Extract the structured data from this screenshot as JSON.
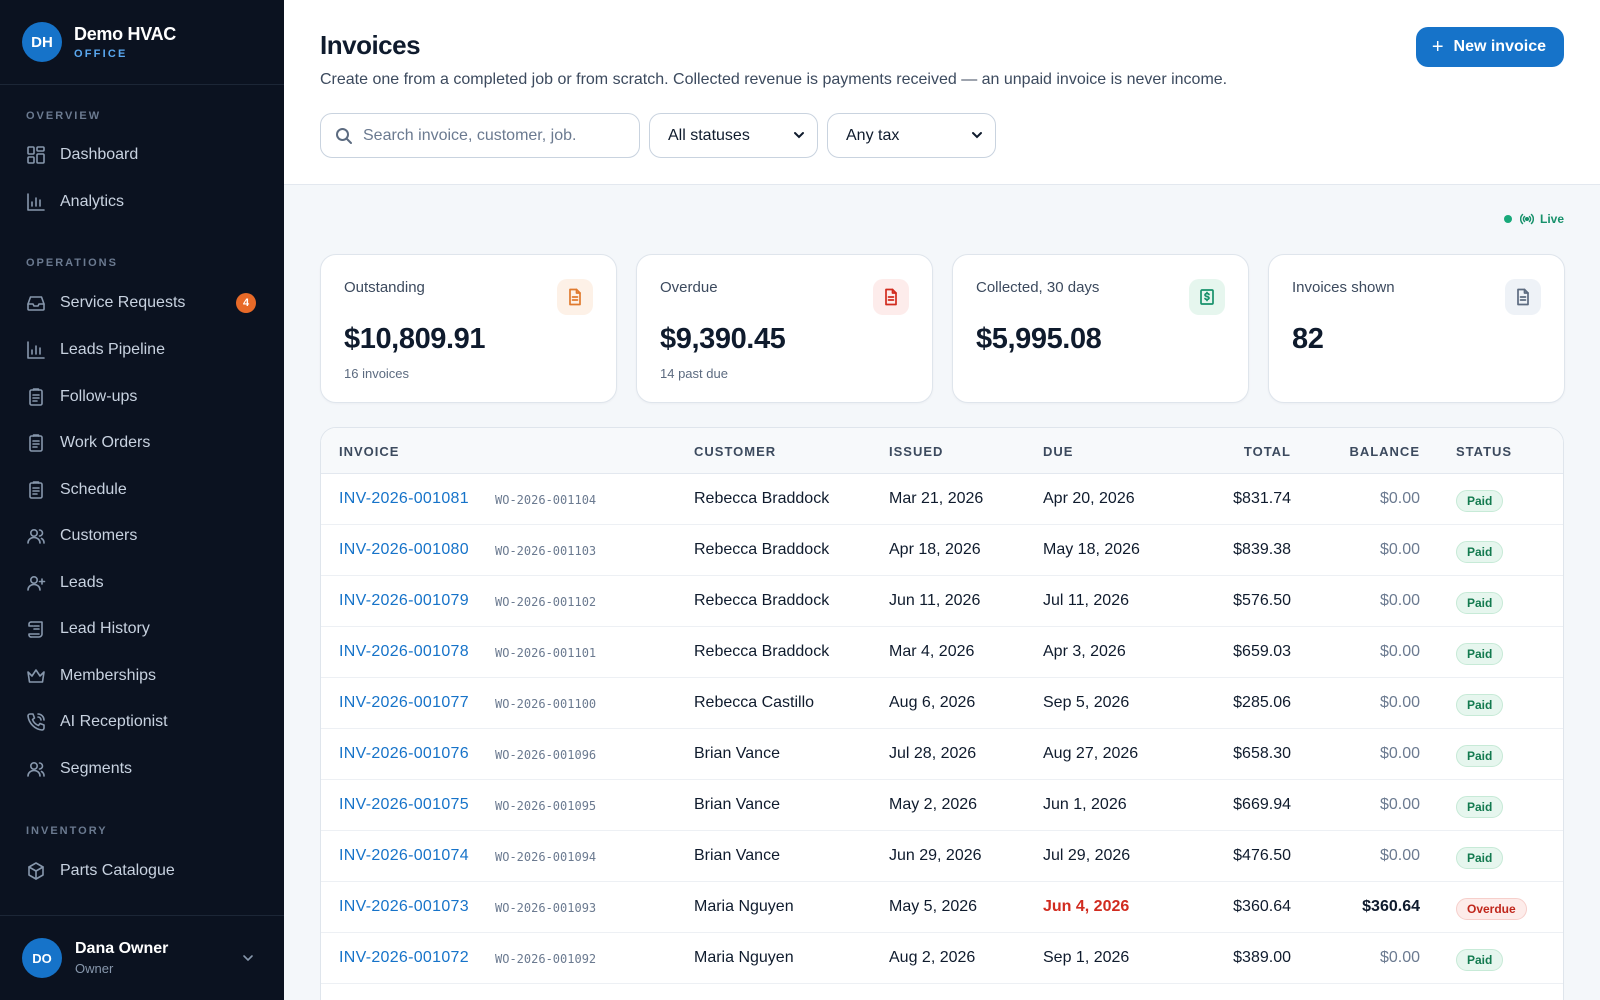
{
  "brand": {
    "initials": "DH",
    "name": "Demo HVAC",
    "subtitle": "OFFICE"
  },
  "sidebar": {
    "sections": [
      {
        "title": "OVERVIEW"
      },
      {
        "title": "OPERATIONS"
      },
      {
        "title": "INVENTORY"
      }
    ],
    "items": [
      {
        "label": "Dashboard",
        "icon": "dashboard-icon"
      },
      {
        "label": "Analytics",
        "icon": "bar-chart-icon"
      },
      {
        "label": "Service Requests",
        "icon": "inbox-icon",
        "badge": "4"
      },
      {
        "label": "Leads Pipeline",
        "icon": "bar-chart-icon"
      },
      {
        "label": "Follow-ups",
        "icon": "clipboard-icon"
      },
      {
        "label": "Work Orders",
        "icon": "clipboard-icon"
      },
      {
        "label": "Schedule",
        "icon": "clipboard-icon"
      },
      {
        "label": "Customers",
        "icon": "users-icon"
      },
      {
        "label": "Leads",
        "icon": "user-plus-icon"
      },
      {
        "label": "Lead History",
        "icon": "scroll-icon"
      },
      {
        "label": "Memberships",
        "icon": "crown-icon"
      },
      {
        "label": "AI Receptionist",
        "icon": "phone-icon"
      },
      {
        "label": "Segments",
        "icon": "users-icon"
      },
      {
        "label": "Parts Catalogue",
        "icon": "box-icon"
      }
    ]
  },
  "user": {
    "initials": "DO",
    "name": "Dana Owner",
    "role": "Owner"
  },
  "header": {
    "title": "Invoices",
    "subtitle": "Create one from a completed job or from scratch. Collected revenue is payments received — an unpaid invoice is never income.",
    "new_button": "New invoice",
    "search_placeholder": "Search invoice, customer, job.",
    "status_filter": "All statuses",
    "tax_filter": "Any tax"
  },
  "live_label": "Live",
  "colors": {
    "accent": "#1673c9",
    "sidebar_bg": "#0b1220",
    "paid": "#137a4f",
    "overdue": "#d12b1f"
  },
  "stats": [
    {
      "label": "Outstanding",
      "value": "$10,809.91",
      "sub": "16 invoices",
      "icon": "document-icon"
    },
    {
      "label": "Overdue",
      "value": "$9,390.45",
      "sub": "14 past due",
      "icon": "document-icon"
    },
    {
      "label": "Collected, 30 days",
      "value": "$5,995.08",
      "sub": "",
      "icon": "dollar-receipt-icon"
    },
    {
      "label": "Invoices shown",
      "value": "82",
      "sub": "",
      "icon": "document-icon"
    }
  ],
  "table": {
    "columns": [
      "INVOICE",
      "CUSTOMER",
      "ISSUED",
      "DUE",
      "TOTAL",
      "BALANCE",
      "STATUS"
    ],
    "rows": [
      {
        "invoice": "INV-2026-001081",
        "wo": "WO-2026-001104",
        "customer": "Rebecca Braddock",
        "issued": "Mar 21, 2026",
        "due": "Apr 20, 2026",
        "total": "$831.74",
        "balance": "$0.00",
        "status": "Paid"
      },
      {
        "invoice": "INV-2026-001080",
        "wo": "WO-2026-001103",
        "customer": "Rebecca Braddock",
        "issued": "Apr 18, 2026",
        "due": "May 18, 2026",
        "total": "$839.38",
        "balance": "$0.00",
        "status": "Paid"
      },
      {
        "invoice": "INV-2026-001079",
        "wo": "WO-2026-001102",
        "customer": "Rebecca Braddock",
        "issued": "Jun 11, 2026",
        "due": "Jul 11, 2026",
        "total": "$576.50",
        "balance": "$0.00",
        "status": "Paid"
      },
      {
        "invoice": "INV-2026-001078",
        "wo": "WO-2026-001101",
        "customer": "Rebecca Braddock",
        "issued": "Mar 4, 2026",
        "due": "Apr 3, 2026",
        "total": "$659.03",
        "balance": "$0.00",
        "status": "Paid"
      },
      {
        "invoice": "INV-2026-001077",
        "wo": "WO-2026-001100",
        "customer": "Rebecca Castillo",
        "issued": "Aug 6, 2026",
        "due": "Sep 5, 2026",
        "total": "$285.06",
        "balance": "$0.00",
        "status": "Paid"
      },
      {
        "invoice": "INV-2026-001076",
        "wo": "WO-2026-001096",
        "customer": "Brian Vance",
        "issued": "Jul 28, 2026",
        "due": "Aug 27, 2026",
        "total": "$658.30",
        "balance": "$0.00",
        "status": "Paid"
      },
      {
        "invoice": "INV-2026-001075",
        "wo": "WO-2026-001095",
        "customer": "Brian Vance",
        "issued": "May 2, 2026",
        "due": "Jun 1, 2026",
        "total": "$669.94",
        "balance": "$0.00",
        "status": "Paid"
      },
      {
        "invoice": "INV-2026-001074",
        "wo": "WO-2026-001094",
        "customer": "Brian Vance",
        "issued": "Jun 29, 2026",
        "due": "Jul 29, 2026",
        "total": "$476.50",
        "balance": "$0.00",
        "status": "Paid"
      },
      {
        "invoice": "INV-2026-001073",
        "wo": "WO-2026-001093",
        "customer": "Maria Nguyen",
        "issued": "May 5, 2026",
        "due": "Jun 4, 2026",
        "total": "$360.64",
        "balance": "$360.64",
        "status": "Overdue"
      },
      {
        "invoice": "INV-2026-001072",
        "wo": "WO-2026-001092",
        "customer": "Maria Nguyen",
        "issued": "Aug 2, 2026",
        "due": "Sep 1, 2026",
        "total": "$389.00",
        "balance": "$0.00",
        "status": "Paid"
      }
    ]
  }
}
